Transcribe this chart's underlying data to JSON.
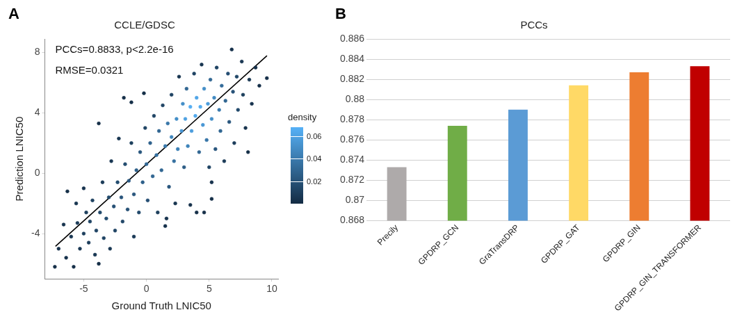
{
  "chart_data": [
    {
      "type": "scatter",
      "title": "CCLE/GDSC",
      "xlabel": "Ground Truth LNIC50",
      "ylabel": "Prediction LNIC50",
      "clabel": "density",
      "clim": [
        0,
        0.068
      ],
      "cticks": [
        0.02,
        0.04,
        0.06
      ],
      "xlim": [
        -8.1,
        10.5
      ],
      "ylim": [
        -7,
        8.9
      ],
      "xticks": [
        -5,
        0,
        5,
        10
      ],
      "yticks": [
        -4,
        0,
        4,
        8
      ],
      "grid": false,
      "annotations": [
        "A",
        "PCCs=0.8833, p<2.2e-16",
        "RMSE=0.0321"
      ],
      "series": [
        {
          "marker": "circle",
          "colors": [
            "#152f48",
            "#16314b",
            "#17334e",
            "#152f48",
            "#16314b",
            "#193753",
            "#152f48",
            "#183550",
            "#1b3b58",
            "#193753",
            "#1d3f5d",
            "#17334e",
            "#1d3f5d",
            "#1c3d5b",
            "#204565",
            "#1e4160",
            "#193753",
            "#204565",
            "#152f48",
            "#152f48",
            "#22496b",
            "#1b3b58",
            "#1f4363",
            "#244d70",
            "#234b6d",
            "#193753",
            "#193753",
            "#265075",
            "#204565",
            "#244d70",
            "#183550",
            "#28547b",
            "#214768",
            "#152f48",
            "#244d70",
            "#265075",
            "#2b5a83",
            "#152f48",
            "#1d3f5d",
            "#1a3956",
            "#29567d",
            "#2e608a",
            "#22496b",
            "#29567d",
            "#2e608a",
            "#152f48",
            "#204565",
            "#326895",
            "#254e73",
            "#2f628d",
            "#316692",
            "#204565",
            "#3570a0",
            "#1d3f5d",
            "#316692",
            "#316692",
            "#204565",
            "#16314b",
            "#3a7aad",
            "#17334e",
            "#3876a8",
            "#29567d",
            "#4086bd",
            "#1f4363",
            "#3570a0",
            "#183550",
            "#448ec7",
            "#3e82b7",
            "#183550",
            "#4997d5",
            "#448ec7",
            "#2c5c85",
            "#4ea1e2",
            "#316692",
            "#3f84ba",
            "#16314b",
            "#54adf2",
            "#4c9ddd",
            "#1f4363",
            "#52a9ec",
            "#152f48",
            "#50a5e7",
            "#316692",
            "#53abef",
            "#183550",
            "#4997d5",
            "#152f48",
            "#448ec7",
            "#3876a8",
            "#4c9ddd",
            "#1f4363",
            "#316692",
            "#152f48",
            "#448ec7",
            "#428ac2",
            "#29567d",
            "#1f4363",
            "#3a7aad",
            "#316692",
            "#346c9a",
            "#1b3b58",
            "#316692",
            "#254e73",
            "#29567d",
            "#16314b",
            "#275278",
            "#1c3d5b",
            "#214768",
            "#22496b",
            "#193753",
            "#1d3f5d",
            "#17334e",
            "#193753",
            "#17334e",
            "#16314b",
            "#152f48",
            "#152f48",
            "#152f48",
            "#17334e"
          ],
          "x": [
            -7.3,
            -7.0,
            -6.6,
            -6.3,
            -6.4,
            -6.0,
            -5.8,
            -5.6,
            -5.5,
            -5.3,
            -5.0,
            -5.0,
            -4.8,
            -4.6,
            -4.5,
            -4.3,
            -4.1,
            -4.0,
            -3.8,
            -3.8,
            -3.7,
            -3.5,
            -3.4,
            -3.2,
            -3.0,
            -2.9,
            -2.8,
            -2.6,
            -2.5,
            -2.3,
            -2.2,
            -2.0,
            -1.9,
            -1.8,
            -1.7,
            -1.5,
            -1.4,
            -1.2,
            -1.2,
            -1.0,
            -1.0,
            -0.8,
            -0.6,
            -0.5,
            -0.3,
            -0.2,
            -0.1,
            0.0,
            0.1,
            0.3,
            0.5,
            0.6,
            0.8,
            0.9,
            1.0,
            1.2,
            1.3,
            1.5,
            1.5,
            1.6,
            1.7,
            1.8,
            2.0,
            2.0,
            2.2,
            2.3,
            2.4,
            2.5,
            2.6,
            2.8,
            2.9,
            3.0,
            3.1,
            3.2,
            3.3,
            3.5,
            3.5,
            3.6,
            3.8,
            3.9,
            4.0,
            4.0,
            4.2,
            4.3,
            4.4,
            4.5,
            4.6,
            4.6,
            4.8,
            4.9,
            5.0,
            5.1,
            5.2,
            5.2,
            5.4,
            5.5,
            5.6,
            5.8,
            5.9,
            6.0,
            6.2,
            6.3,
            6.5,
            6.6,
            6.8,
            6.9,
            7.0,
            7.2,
            7.3,
            7.6,
            7.7,
            7.9,
            8.2,
            8.4,
            8.7,
            9.0,
            9.6,
            8.1,
            5.2
          ],
          "values": [
            -6.2,
            -5.0,
            -3.4,
            -1.2,
            -5.6,
            -4.2,
            -6.2,
            -2.0,
            -3.3,
            -5.0,
            -4.0,
            -1.0,
            -2.6,
            -4.6,
            -3.2,
            -1.8,
            -5.4,
            -3.8,
            -6.0,
            3.3,
            -2.6,
            -0.6,
            -4.3,
            -3.0,
            -1.6,
            -5.0,
            0.8,
            -2.2,
            -3.8,
            -0.6,
            2.3,
            -1.6,
            -3.2,
            5.0,
            0.6,
            -2.4,
            -0.5,
            4.7,
            2.0,
            -4.2,
            -1.4,
            0.2,
            -2.6,
            1.4,
            -0.6,
            5.3,
            3.0,
            0.6,
            -1.8,
            2.0,
            -0.2,
            3.8,
            1.2,
            -2.6,
            2.8,
            0.2,
            4.5,
            -3.5,
            1.8,
            -3.0,
            3.3,
            -0.9,
            2.4,
            5.2,
            0.8,
            -2.0,
            3.6,
            1.6,
            6.4,
            2.8,
            4.6,
            0.4,
            3.6,
            5.6,
            1.8,
            -2.1,
            4.4,
            2.8,
            6.6,
            3.8,
            -2.6,
            5.0,
            1.4,
            4.4,
            7.2,
            3.2,
            -2.6,
            5.6,
            2.2,
            4.6,
            0.4,
            6.2,
            -1.7,
            3.6,
            5.0,
            1.6,
            7.0,
            4.2,
            2.8,
            5.8,
            0.8,
            4.8,
            6.6,
            3.4,
            8.2,
            5.4,
            2.0,
            6.4,
            4.2,
            7.4,
            5.2,
            3.0,
            6.2,
            4.6,
            7.0,
            5.8,
            6.3,
            1.4,
            -0.6
          ],
          "cvalues": [
            0.002,
            0.003,
            0.004,
            0.002,
            0.003,
            0.006,
            0.002,
            0.005,
            0.008,
            0.006,
            0.01,
            0.004,
            0.01,
            0.009,
            0.013,
            0.011,
            0.006,
            0.013,
            0.002,
            0.002,
            0.015,
            0.008,
            0.012,
            0.017,
            0.016,
            0.006,
            0.006,
            0.019,
            0.013,
            0.017,
            0.005,
            0.021,
            0.014,
            0.002,
            0.017,
            0.019,
            0.024,
            0.002,
            0.01,
            0.007,
            0.022,
            0.027,
            0.015,
            0.022,
            0.027,
            0.002,
            0.013,
            0.031,
            0.018,
            0.028,
            0.03,
            0.013,
            0.035,
            0.01,
            0.03,
            0.03,
            0.013,
            0.003,
            0.04,
            0.004,
            0.038,
            0.022,
            0.046,
            0.012,
            0.035,
            0.005,
            0.05,
            0.044,
            0.005,
            0.055,
            0.05,
            0.025,
            0.06,
            0.03,
            0.045,
            0.003,
            0.066,
            0.058,
            0.012,
            0.064,
            0.002,
            0.062,
            0.03,
            0.065,
            0.005,
            0.055,
            0.002,
            0.05,
            0.038,
            0.058,
            0.012,
            0.03,
            0.002,
            0.05,
            0.048,
            0.022,
            0.012,
            0.04,
            0.03,
            0.033,
            0.008,
            0.03,
            0.018,
            0.022,
            0.003,
            0.02,
            0.009,
            0.014,
            0.015,
            0.006,
            0.01,
            0.004,
            0.006,
            0.004,
            0.003,
            0.002,
            0.002,
            0.002,
            0.004
          ]
        },
        {
          "type": "line",
          "x": [
            -7.25,
            9.61
          ],
          "values": [
            -4.84,
            7.79
          ],
          "color": "#000000"
        }
      ]
    },
    {
      "type": "bar",
      "title": "PCCs",
      "annotations": [
        "B"
      ],
      "categories": [
        "Precily",
        "GPDRP_GCN",
        "GraTransDRP",
        "GPDRP_GAT",
        "GPDRP_GIN",
        "GPDRP_GIN_TRANSFORMER"
      ],
      "values": [
        0.8733,
        0.8774,
        0.879,
        0.8814,
        0.8827,
        0.8833
      ],
      "colors": [
        "#aeaaaa",
        "#70ad47",
        "#5b9bd5",
        "#ffd966",
        "#ed7d31",
        "#c00000"
      ],
      "ylim": [
        0.868,
        0.886
      ],
      "yticks": [
        0.868,
        0.87,
        0.872,
        0.874,
        0.876,
        0.878,
        0.88,
        0.882,
        0.884,
        0.886
      ],
      "grid": "y"
    }
  ]
}
